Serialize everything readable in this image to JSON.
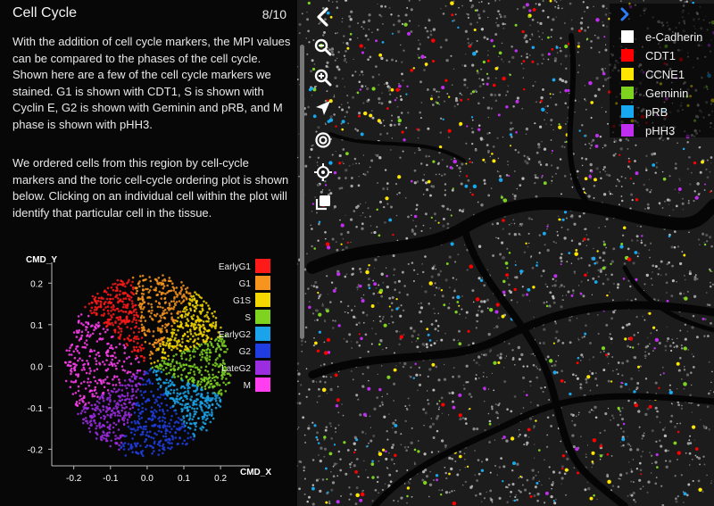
{
  "panel": {
    "title": "Cell Cycle",
    "page": "8/10",
    "paragraph1": "With the addition of cell cycle markers, the MPI values can be compared to the phases of the cell cycle. Shown here are a few of the cell cycle markers we stained. G1 is shown with CDT1, S is shown with Cyclin E, G2 is shown with Geminin and pRB, and M phase is shown with pHH3.",
    "paragraph2": "We ordered cells from this region by cell-cycle markers and the toric cell-cycle ordering plot is shown below. Clicking on an individual cell within the plot will identify that particular cell in the tissue."
  },
  "toolbar": {
    "icons": [
      "chevron-left-icon",
      "zoom-out-icon",
      "zoom-in-icon",
      "arrow-icon",
      "target-icon",
      "crosshair-icon",
      "copy-icon"
    ]
  },
  "legend": {
    "items": [
      {
        "label": "e-Cadherin",
        "color": "#ffffff"
      },
      {
        "label": "CDT1",
        "color": "#ff0000"
      },
      {
        "label": "CCNE1",
        "color": "#ffe600"
      },
      {
        "label": "Geminin",
        "color": "#7ed321"
      },
      {
        "label": "pRB",
        "color": "#18a8f0"
      },
      {
        "label": "pHH3",
        "color": "#c02ef0"
      }
    ],
    "accent": "#2d7df6"
  },
  "chart_data": {
    "type": "scatter",
    "xlabel": "CMD_X",
    "ylabel": "CMD_Y",
    "xlim": [
      -0.26,
      0.28
    ],
    "ylim": [
      -0.24,
      0.25
    ],
    "xticks": [
      "-0.2",
      "-0.1",
      "0.0",
      "0.1",
      "0.2"
    ],
    "yticks": [
      "0.2",
      "0.1",
      "0.0",
      "-0.1",
      "-0.2"
    ],
    "xtick_values": [
      -0.2,
      -0.1,
      0.0,
      0.1,
      0.2
    ],
    "ytick_values": [
      0.2,
      0.1,
      0.0,
      -0.1,
      -0.2
    ],
    "legend_placement": "right",
    "series": [
      {
        "name": "EarlyG1",
        "color": "#ff1a1a",
        "angle_range": [
          100,
          140
        ]
      },
      {
        "name": "G1",
        "color": "#f7941d",
        "angle_range": [
          55,
          100
        ]
      },
      {
        "name": "G1S",
        "color": "#f5d800",
        "angle_range": [
          20,
          55
        ]
      },
      {
        "name": "S",
        "color": "#7ed321",
        "angle_range": [
          -20,
          20
        ]
      },
      {
        "name": "EarlyG2",
        "color": "#1aa3ea",
        "angle_range": [
          -55,
          -20
        ]
      },
      {
        "name": "G2",
        "color": "#1f3de0",
        "angle_range": [
          -110,
          -55
        ]
      },
      {
        "name": "LateG2",
        "color": "#9b2ce0",
        "angle_range": [
          -150,
          -110
        ]
      },
      {
        "name": "M",
        "color": "#ff3ef0",
        "angle_range": [
          140,
          210
        ]
      }
    ]
  }
}
